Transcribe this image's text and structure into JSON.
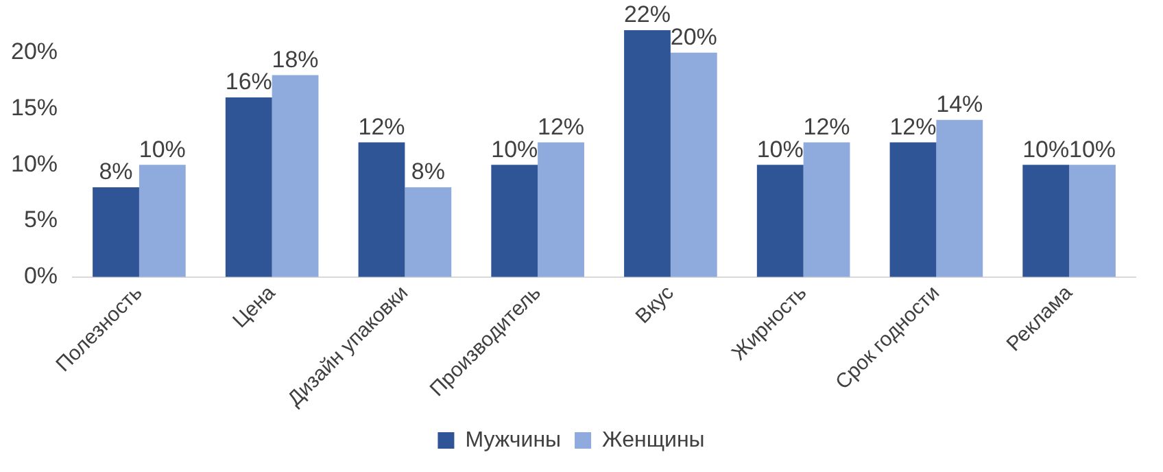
{
  "chart_data": {
    "type": "bar",
    "categories": [
      "Полезность",
      "Цена",
      "Дизайн упаковки",
      "Производитель",
      "Вкус",
      "Жирность",
      "Срок годности",
      "Реклама"
    ],
    "series": [
      {
        "name": "Мужчины",
        "color": "#2f5597",
        "values": [
          8,
          16,
          12,
          10,
          22,
          10,
          12,
          10
        ],
        "value_labels": [
          "8%",
          "16%",
          "12%",
          "10%",
          "22%",
          "10%",
          "12%",
          "10%"
        ]
      },
      {
        "name": "Женщины",
        "color": "#8faadc",
        "values": [
          10,
          18,
          8,
          12,
          20,
          12,
          14,
          10
        ],
        "value_labels": [
          "10%",
          "18%",
          "8%",
          "12%",
          "20%",
          "12%",
          "14%",
          "10%"
        ]
      }
    ],
    "ylim": [
      0,
      22
    ],
    "yticks": [
      {
        "value": 0,
        "label": "0%"
      },
      {
        "value": 5,
        "label": "5%"
      },
      {
        "value": 10,
        "label": "10%"
      },
      {
        "value": 15,
        "label": "15%"
      },
      {
        "value": 20,
        "label": "20%"
      }
    ],
    "grid": false,
    "legend": "bottom"
  }
}
